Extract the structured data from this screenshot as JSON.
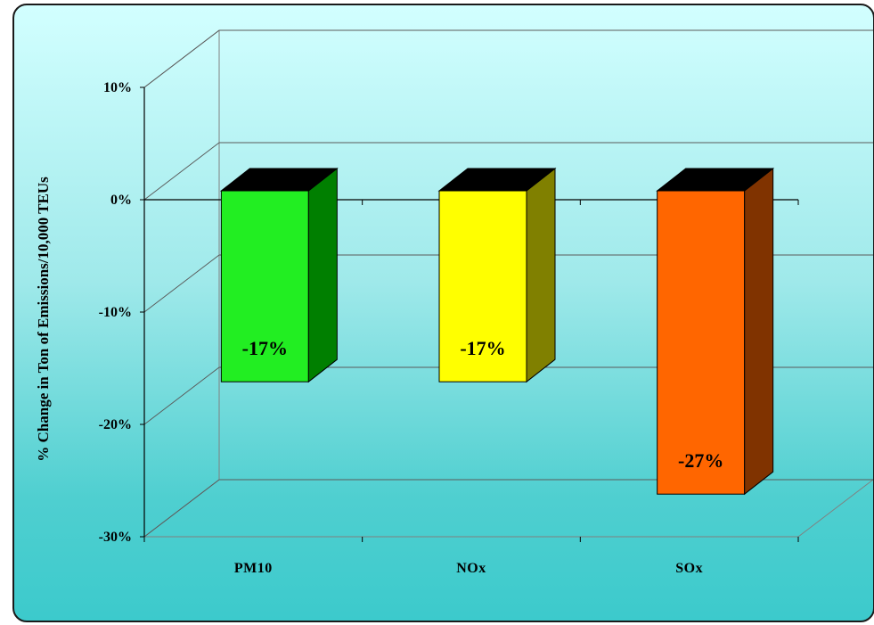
{
  "chart_data": {
    "type": "bar",
    "title": "",
    "xlabel": "",
    "ylabel": "% Change in Ton of Emissions/10,000 TEUs",
    "categories": [
      "PM10",
      "NOx",
      "SOx"
    ],
    "values": [
      -17,
      -17,
      -27
    ],
    "data_labels": [
      "-17%",
      "-17%",
      "-27%"
    ],
    "ylim": [
      -30,
      10
    ],
    "yticks": [
      10,
      0,
      -10,
      -20,
      -30
    ],
    "ytick_labels": [
      "10%",
      "0%",
      "-10%",
      "-20%",
      "-30%"
    ],
    "bar_colors": [
      "#22ee22",
      "#ffff00",
      "#ff6600"
    ],
    "bar_side_colors": [
      "#007f00",
      "#808000",
      "#803300"
    ],
    "bar_top_color": "#000000",
    "grid": true,
    "three_d": true,
    "legend": "none"
  }
}
